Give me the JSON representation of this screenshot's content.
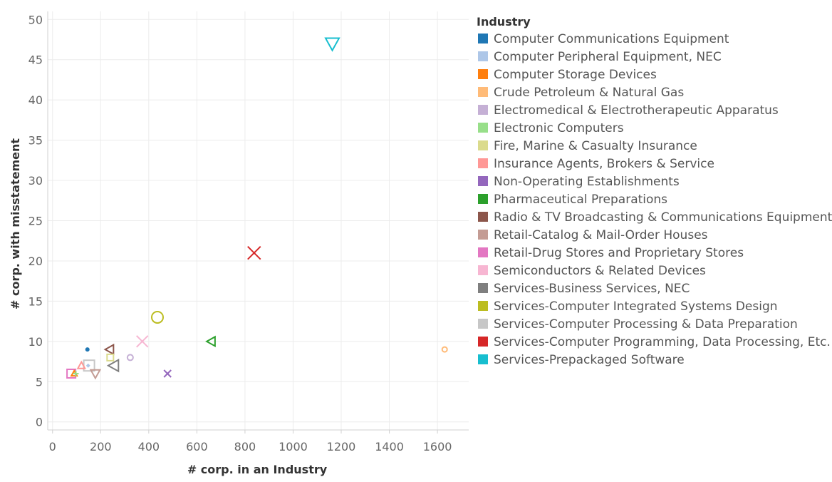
{
  "chart_data": {
    "type": "scatter",
    "xlabel": "# corp. in an Industry",
    "ylabel": "# corp. with misstatement",
    "xlim": [
      -20,
      1730
    ],
    "ylim": [
      -1,
      51
    ],
    "xticks": [
      0,
      200,
      400,
      600,
      800,
      1000,
      1200,
      1400,
      1600
    ],
    "yticks": [
      0,
      5,
      10,
      15,
      20,
      25,
      30,
      35,
      40,
      45,
      50
    ],
    "grid": true,
    "legend": {
      "title": "Industry",
      "placement": "right",
      "entries": [
        {
          "name": "Computer Communications Equipment",
          "color": "#1f77b4"
        },
        {
          "name": "Computer Peripheral Equipment, NEC",
          "color": "#aec7e8"
        },
        {
          "name": "Computer Storage Devices",
          "color": "#ff7f0e"
        },
        {
          "name": "Crude Petroleum & Natural Gas",
          "color": "#ffbb78"
        },
        {
          "name": "Electromedical & Electrotherapeutic Apparatus",
          "color": "#c5b0d5"
        },
        {
          "name": "Electronic Computers",
          "color": "#98df8a"
        },
        {
          "name": "Fire, Marine & Casualty Insurance",
          "color": "#dbdb8d"
        },
        {
          "name": "Insurance Agents, Brokers & Service",
          "color": "#ff9896"
        },
        {
          "name": "Non-Operating Establishments",
          "color": "#9467bd"
        },
        {
          "name": "Pharmaceutical Preparations",
          "color": "#2ca02c"
        },
        {
          "name": "Radio & TV Broadcasting & Communications Equipment",
          "color": "#8c564b"
        },
        {
          "name": "Retail-Catalog & Mail-Order Houses",
          "color": "#c49c94"
        },
        {
          "name": "Retail-Drug Stores and Proprietary Stores",
          "color": "#e377c2"
        },
        {
          "name": "Semiconductors & Related Devices",
          "color": "#f7b6d2"
        },
        {
          "name": "Services-Business Services, NEC",
          "color": "#7f7f7f"
        },
        {
          "name": "Services-Computer Integrated Systems Design",
          "color": "#bcbd22"
        },
        {
          "name": "Services-Computer Processing & Data Preparation",
          "color": "#c7c7c7"
        },
        {
          "name": "Services-Computer Programming, Data Processing, Etc.",
          "color": "#d62728"
        },
        {
          "name": "Services-Prepackaged Software",
          "color": "#17becf"
        }
      ]
    },
    "points": [
      {
        "series": "Computer Communications Equipment",
        "x": 145,
        "y": 9,
        "shape": "filled-circle",
        "size": 3
      },
      {
        "series": "Computer Peripheral Equipment, NEC",
        "x": 148,
        "y": 7,
        "shape": "diamond",
        "size": 3
      },
      {
        "series": "Computer Storage Devices",
        "x": 90,
        "y": 6,
        "shape": "triangle-up",
        "size": 4
      },
      {
        "series": "Crude Petroleum & Natural Gas",
        "x": 1630,
        "y": 9,
        "shape": "circle",
        "size": 3.5
      },
      {
        "series": "Electromedical & Electrotherapeutic Apparatus",
        "x": 323,
        "y": 8,
        "shape": "circle",
        "size": 4
      },
      {
        "series": "Electronic Computers",
        "x": 97,
        "y": 6,
        "shape": "plus",
        "size": 4
      },
      {
        "series": "Fire, Marine & Casualty Insurance",
        "x": 240,
        "y": 8,
        "shape": "square",
        "size": 4.5
      },
      {
        "series": "Insurance Agents, Brokers & Service",
        "x": 120,
        "y": 7,
        "shape": "triangle-up",
        "size": 5
      },
      {
        "series": "Non-Operating Establishments",
        "x": 478,
        "y": 6,
        "shape": "cross",
        "size": 5
      },
      {
        "series": "Pharmaceutical Preparations",
        "x": 660,
        "y": 10,
        "shape": "triangle-left",
        "size": 6.5
      },
      {
        "series": "Radio & TV Broadcasting & Communications Equipment",
        "x": 238,
        "y": 9,
        "shape": "triangle-left",
        "size": 6.5
      },
      {
        "series": "Retail-Catalog & Mail-Order Houses",
        "x": 178,
        "y": 6,
        "shape": "triangle-down",
        "size": 6.5
      },
      {
        "series": "Retail-Drug Stores and Proprietary Stores",
        "x": 78,
        "y": 6,
        "shape": "square",
        "size": 6
      },
      {
        "series": "Semiconductors & Related Devices",
        "x": 373,
        "y": 10,
        "shape": "cross",
        "size": 8
      },
      {
        "series": "Services-Business Services, NEC",
        "x": 255,
        "y": 7,
        "shape": "triangle-left",
        "size": 8
      },
      {
        "series": "Services-Computer Integrated Systems Design",
        "x": 436,
        "y": 13,
        "shape": "circle",
        "size": 8
      },
      {
        "series": "Services-Computer Processing & Data Preparation",
        "x": 152,
        "y": 7,
        "shape": "square",
        "size": 7.5
      },
      {
        "series": "Services-Computer Programming, Data Processing, Etc.",
        "x": 838,
        "y": 21,
        "shape": "cross",
        "size": 9
      },
      {
        "series": "Services-Prepackaged Software",
        "x": 1163,
        "y": 47,
        "shape": "triangle-down",
        "size": 9.5
      }
    ]
  }
}
